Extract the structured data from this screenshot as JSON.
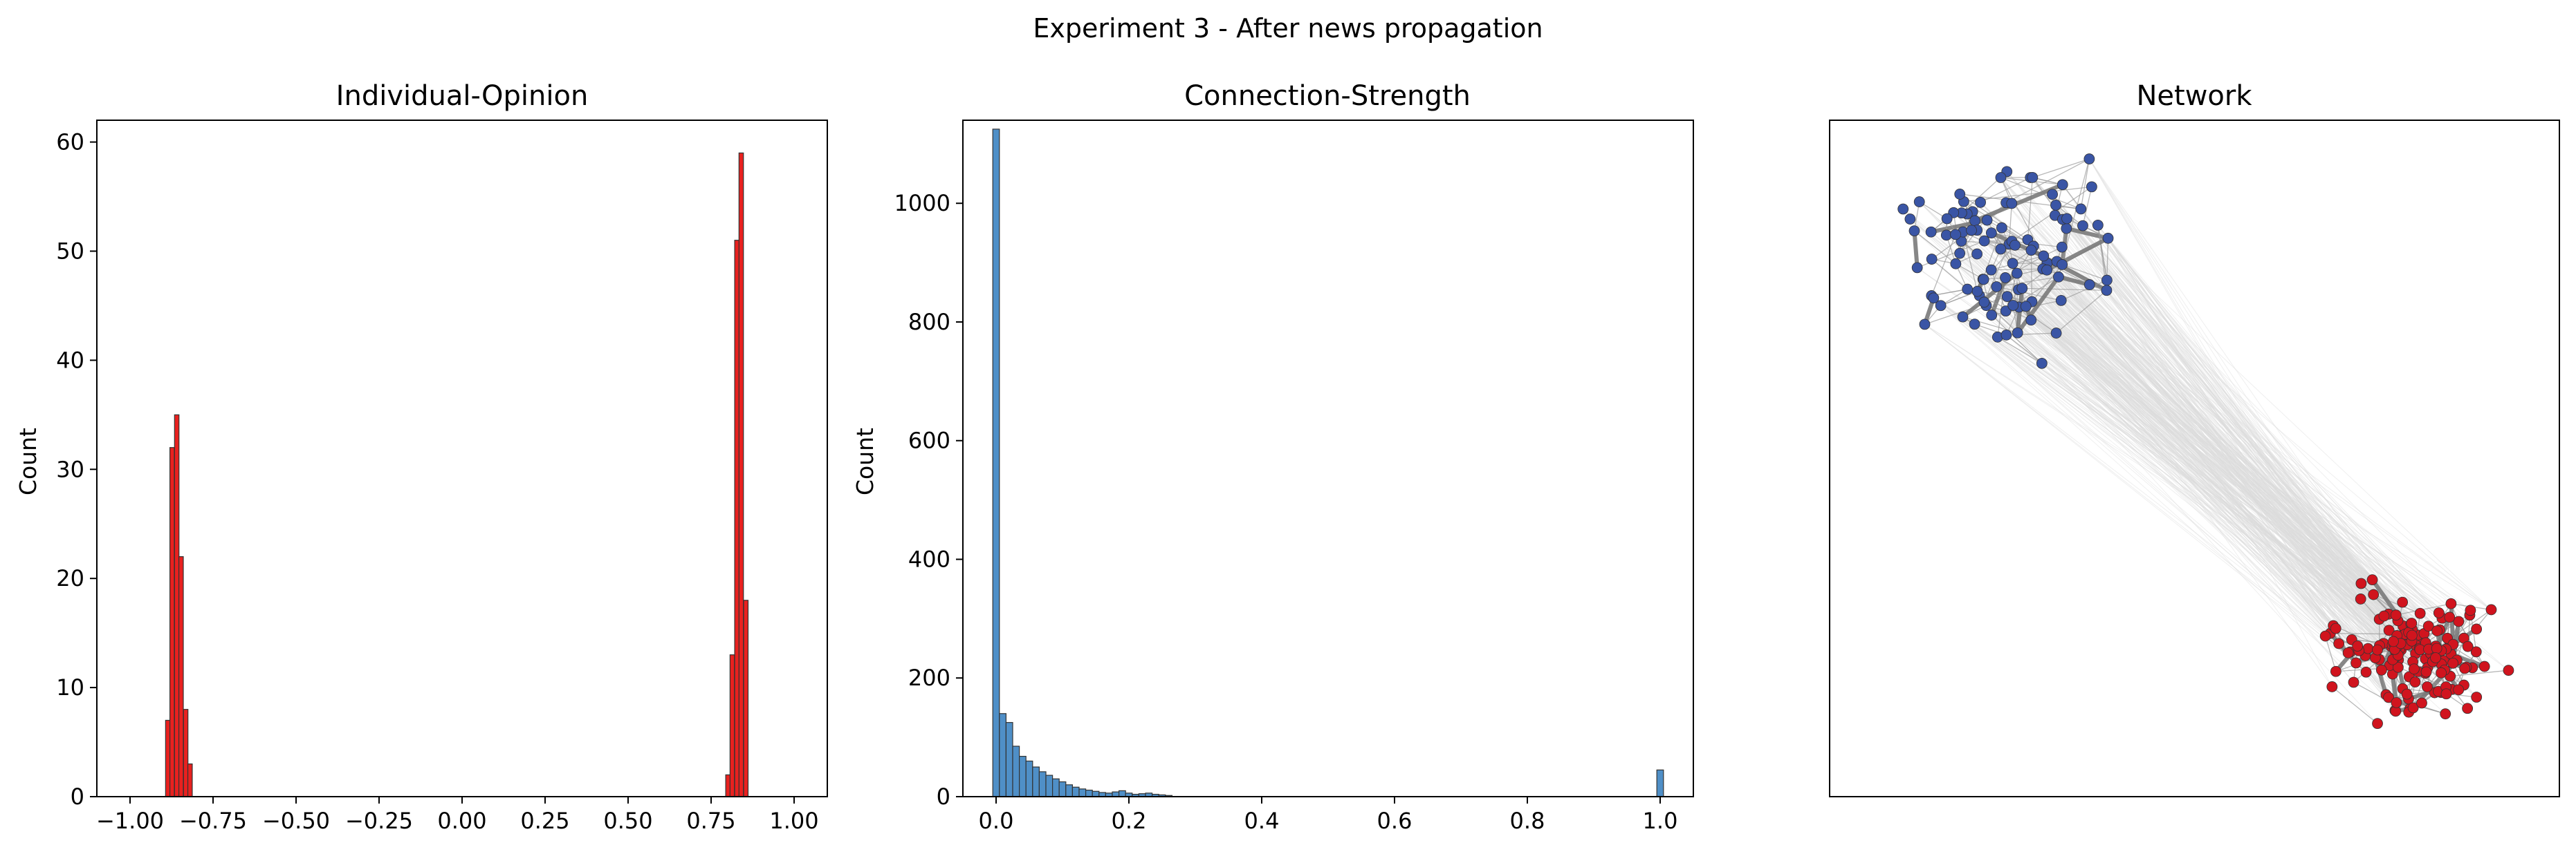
{
  "suptitle": "Experiment 3 - After news propagation",
  "colors": {
    "opinion_bars": "#e8211f",
    "strength_bars": "#4f8fc7",
    "cluster_blue": "#3a55a5",
    "cluster_red": "#d0141e",
    "edges": "#9a9a9a"
  },
  "chart_data": [
    {
      "type": "bar",
      "title": "Individual-Opinion",
      "xlabel": "",
      "ylabel": "Count",
      "xlim": [
        -1.1,
        1.1
      ],
      "ylim": [
        0,
        62
      ],
      "xticks": [
        "−1.00",
        "−0.75",
        "−0.50",
        "−0.25",
        "0.00",
        "0.25",
        "0.50",
        "0.75",
        "1.00"
      ],
      "yticks": [
        "0",
        "10",
        "20",
        "30",
        "40",
        "50",
        "60"
      ],
      "bin_width": 0.0134,
      "bins": [
        {
          "x0": -0.893,
          "count": 7
        },
        {
          "x0": -0.88,
          "count": 32
        },
        {
          "x0": -0.866,
          "count": 35
        },
        {
          "x0": -0.853,
          "count": 22
        },
        {
          "x0": -0.839,
          "count": 8
        },
        {
          "x0": -0.826,
          "count": 3
        },
        {
          "x0": 0.794,
          "count": 2
        },
        {
          "x0": 0.807,
          "count": 13
        },
        {
          "x0": 0.821,
          "count": 51
        },
        {
          "x0": 0.834,
          "count": 59
        },
        {
          "x0": 0.848,
          "count": 18
        }
      ]
    },
    {
      "type": "bar",
      "title": "Connection-Strength",
      "xlabel": "",
      "ylabel": "Count",
      "xlim": [
        -0.05,
        1.05
      ],
      "ylim": [
        0,
        1140
      ],
      "xticks": [
        "0.0",
        "0.2",
        "0.4",
        "0.6",
        "0.8",
        "1.0"
      ],
      "yticks": [
        "0",
        "200",
        "400",
        "600",
        "800",
        "1000"
      ],
      "bin_width": 0.01,
      "bins": [
        {
          "x0": -0.005,
          "count": 1125
        },
        {
          "x0": 0.005,
          "count": 140
        },
        {
          "x0": 0.015,
          "count": 125
        },
        {
          "x0": 0.025,
          "count": 85
        },
        {
          "x0": 0.035,
          "count": 68
        },
        {
          "x0": 0.045,
          "count": 60
        },
        {
          "x0": 0.055,
          "count": 50
        },
        {
          "x0": 0.065,
          "count": 42
        },
        {
          "x0": 0.075,
          "count": 36
        },
        {
          "x0": 0.085,
          "count": 30
        },
        {
          "x0": 0.095,
          "count": 25
        },
        {
          "x0": 0.105,
          "count": 20
        },
        {
          "x0": 0.115,
          "count": 16
        },
        {
          "x0": 0.125,
          "count": 13
        },
        {
          "x0": 0.135,
          "count": 11
        },
        {
          "x0": 0.145,
          "count": 9
        },
        {
          "x0": 0.155,
          "count": 7
        },
        {
          "x0": 0.165,
          "count": 6
        },
        {
          "x0": 0.175,
          "count": 8
        },
        {
          "x0": 0.185,
          "count": 10
        },
        {
          "x0": 0.195,
          "count": 6
        },
        {
          "x0": 0.205,
          "count": 4
        },
        {
          "x0": 0.215,
          "count": 5
        },
        {
          "x0": 0.225,
          "count": 6
        },
        {
          "x0": 0.235,
          "count": 4
        },
        {
          "x0": 0.245,
          "count": 3
        },
        {
          "x0": 0.255,
          "count": 2
        },
        {
          "x0": 0.995,
          "count": 45
        }
      ]
    },
    {
      "type": "network",
      "title": "Network",
      "xlim": [
        0,
        1
      ],
      "ylim": [
        0,
        1
      ],
      "clusters": [
        {
          "color": "blue",
          "center": [
            0.25,
            0.8
          ],
          "spread": [
            0.2,
            0.17
          ],
          "nodes": 100
        },
        {
          "color": "red",
          "center": [
            0.8,
            0.21
          ],
          "spread": [
            0.15,
            0.12
          ],
          "nodes": 150
        }
      ]
    }
  ]
}
